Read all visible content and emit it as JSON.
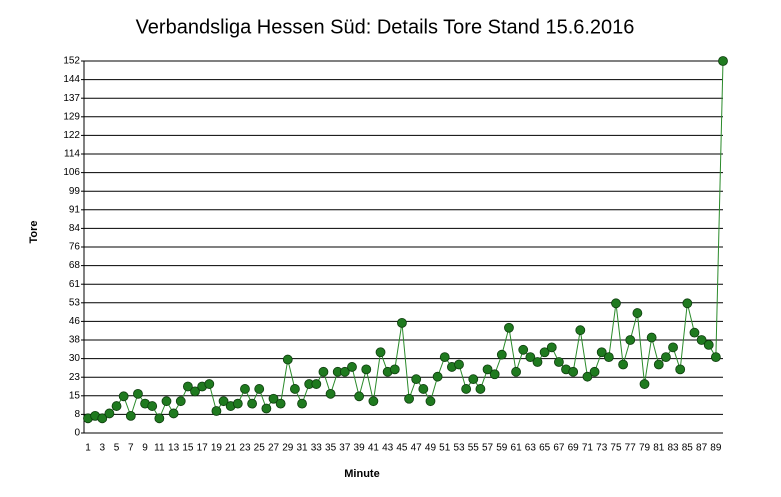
{
  "chart_data": {
    "type": "line",
    "title": "Verbandsliga Hessen Süd: Details Tore Stand 15.6.2016",
    "x_label": "Minute",
    "y_label": "Tore",
    "categories": [
      "1",
      null,
      "3",
      null,
      "5",
      null,
      "7",
      null,
      "9",
      null,
      "11",
      null,
      "13",
      null,
      "15",
      null,
      "17",
      null,
      "19",
      null,
      "21",
      null,
      "23",
      null,
      "25",
      null,
      "27",
      null,
      "29",
      null,
      "31",
      null,
      "33",
      null,
      "35",
      null,
      "37",
      null,
      "39",
      null,
      "41",
      null,
      "43",
      null,
      "45",
      null,
      "47",
      null,
      "49",
      null,
      "51",
      null,
      "53",
      null,
      "55",
      null,
      "57",
      null,
      "59",
      null,
      "61",
      null,
      "63",
      null,
      "65",
      null,
      "67",
      null,
      "69",
      null,
      "71",
      null,
      "73",
      null,
      "75",
      null,
      "77",
      null,
      "79",
      null,
      "81",
      null,
      "83",
      null,
      "85",
      null,
      "87",
      null,
      "89",
      null
    ],
    "series": [
      {
        "name": "Tore",
        "color": "#2a8a2a",
        "marker_color": "#1f7a1f",
        "values": [
          6,
          7,
          6,
          8,
          11,
          15,
          7,
          16,
          12,
          11,
          6,
          13,
          8,
          13,
          19,
          17,
          19,
          20,
          9,
          13,
          11,
          12,
          18,
          12,
          18,
          10,
          14,
          12,
          30,
          18,
          12,
          20,
          20,
          25,
          16,
          25,
          25,
          27,
          15,
          26,
          13,
          33,
          25,
          26,
          45,
          14,
          22,
          18,
          13,
          23,
          31,
          27,
          28,
          18,
          22,
          18,
          26,
          24,
          32,
          43,
          25,
          34,
          31,
          29,
          33,
          35,
          29,
          26,
          25,
          42,
          23,
          25,
          33,
          31,
          53,
          28,
          38,
          49,
          20,
          39,
          28,
          31,
          35,
          26,
          53,
          41,
          38,
          36,
          31,
          152
        ]
      }
    ],
    "ylim": [
      0,
      152
    ],
    "yticks": [
      0,
      {
        "value": 7.6,
        "label": "8"
      },
      {
        "value": 15.2,
        "label": "15"
      },
      {
        "value": 22.8,
        "label": "23"
      },
      {
        "value": 30.4,
        "label": "30"
      },
      38,
      {
        "value": 45.6,
        "label": "46"
      },
      {
        "value": 53.2,
        "label": "53"
      },
      {
        "value": 60.8,
        "label": "61"
      },
      {
        "value": 68.4,
        "label": "68"
      },
      76,
      {
        "value": 83.6,
        "label": "84"
      },
      {
        "value": 91.2,
        "label": "91"
      },
      {
        "value": 98.8,
        "label": "99"
      },
      {
        "value": 106.4,
        "label": "106"
      },
      114,
      {
        "value": 121.6,
        "label": "122"
      },
      {
        "value": 129.2,
        "label": "129"
      },
      {
        "value": 136.8,
        "label": "137"
      },
      {
        "value": 144.4,
        "label": "144"
      },
      152
    ],
    "grid": true
  }
}
